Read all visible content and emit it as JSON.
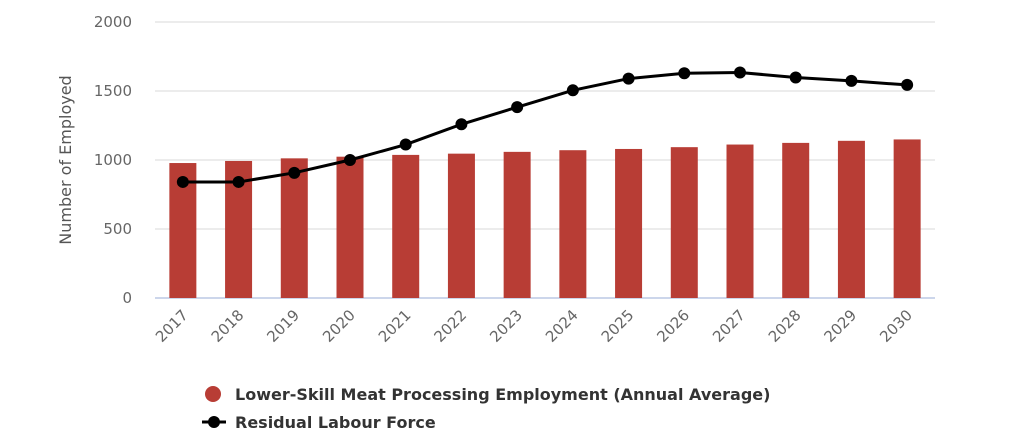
{
  "chart_data": {
    "type": "bar",
    "title": "",
    "xlabel": "",
    "ylabel": "Number of Employed",
    "ylim": [
      0,
      2000
    ],
    "yticks": [
      "0",
      "500",
      "1000",
      "1500",
      "2000"
    ],
    "grid": true,
    "legend_position": "bottom",
    "categories": [
      "2017",
      "2018",
      "2019",
      "2020",
      "2021",
      "2022",
      "2023",
      "2024",
      "2025",
      "2026",
      "2027",
      "2028",
      "2029",
      "2030"
    ],
    "series": [
      {
        "name": "Lower-Skill Meat Processing Employment (Annual Average)",
        "type": "bar",
        "color": "#b83d35",
        "values": [
          978,
          993,
          1012,
          1024,
          1037,
          1046,
          1059,
          1071,
          1080,
          1093,
          1112,
          1124,
          1139,
          1149
        ]
      },
      {
        "name": "Residual Labour Force",
        "type": "line",
        "color": "#000000",
        "values": [
          841,
          841,
          907,
          1000,
          1112,
          1259,
          1383,
          1505,
          1590,
          1629,
          1634,
          1598,
          1573,
          1544
        ]
      }
    ]
  }
}
